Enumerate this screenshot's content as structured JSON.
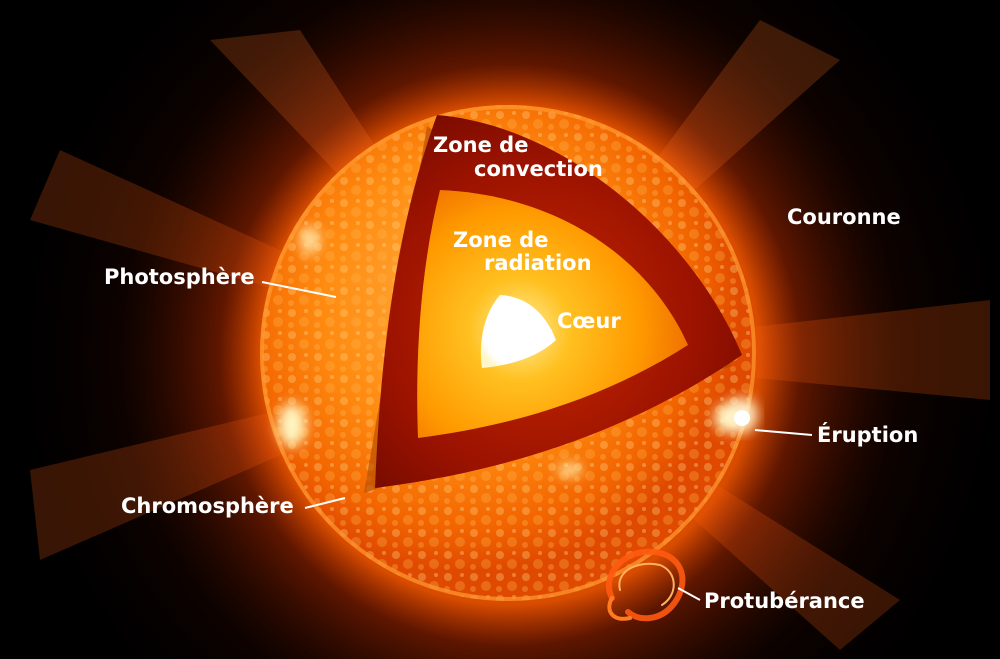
{
  "labels": {
    "convection_line1": "Zone de",
    "convection_line2": "convection",
    "radiation_line1": "Zone de",
    "radiation_line2": "radiation",
    "core": "Cœur",
    "corona": "Couronne",
    "photosphere": "Photosphère",
    "chromosphere": "Chromosphère",
    "flare": "Éruption",
    "prominence": "Protubérance"
  },
  "colors": {
    "background": "#000000",
    "corona_glow": "#ff5a00",
    "surface_light": "#ffc060",
    "surface_mid": "#ff8a10",
    "surface_dark": "#e04a00",
    "convection_zone": "#9a1200",
    "radiation_zone": "#ff8a00",
    "core": "#ffffff",
    "label_text": "#ffffff"
  }
}
